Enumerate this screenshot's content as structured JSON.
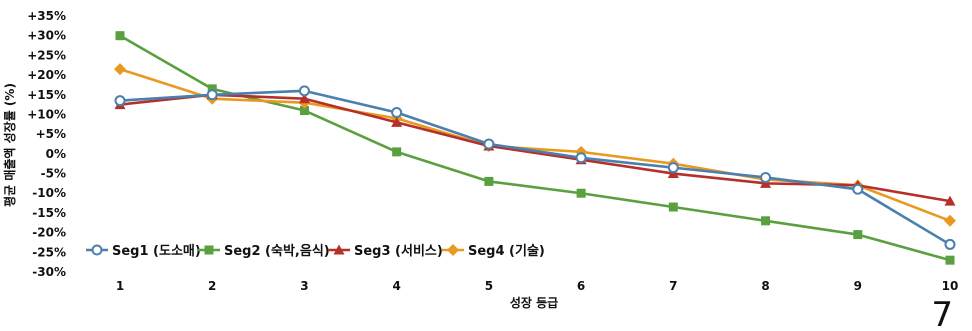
{
  "chart_data": {
    "type": "line",
    "title": "",
    "xlabel": "성장 등급",
    "ylabel": "평균 매출액 성장률 (%)",
    "ylim": [
      -30,
      35
    ],
    "yticks": [
      35,
      30,
      25,
      20,
      15,
      10,
      5,
      0,
      -5,
      -10,
      -15,
      -20,
      -25,
      -30
    ],
    "ytick_labels": [
      "+35%",
      "+30%",
      "+25%",
      "+20%",
      "+15%",
      "+10%",
      "+5%",
      "0%",
      "-5%",
      "-10%",
      "-15%",
      "-20%",
      "-25%",
      "-30%"
    ],
    "x": [
      "1",
      "2",
      "3",
      "4",
      "5",
      "6",
      "7",
      "8",
      "9",
      "10"
    ],
    "grid": false,
    "legend_position": "bottom-left",
    "series": [
      {
        "name": "Seg1 (도소매)",
        "color": "#4a7fae",
        "marker": "open-circle",
        "values": [
          13.5,
          15,
          16,
          10.5,
          2.5,
          -1,
          -3.5,
          -6,
          -9,
          -23
        ]
      },
      {
        "name": "Seg2 (숙박,음식)",
        "color": "#5aa040",
        "marker": "square",
        "values": [
          30,
          16.5,
          11,
          0.5,
          -7,
          -10,
          -13.5,
          -17,
          -20.5,
          -27
        ]
      },
      {
        "name": "Seg3 (서비스)",
        "color": "#b5302a",
        "marker": "triangle",
        "values": [
          12.5,
          15,
          14,
          8,
          2,
          -1.5,
          -5,
          -7.5,
          -8,
          -12
        ]
      },
      {
        "name": "Seg4 (기술)",
        "color": "#e89a20",
        "marker": "diamond",
        "values": [
          21.5,
          14,
          13,
          9,
          2,
          0.5,
          -2.5,
          -6.5,
          -8,
          -17
        ]
      }
    ]
  },
  "page_number": "7"
}
